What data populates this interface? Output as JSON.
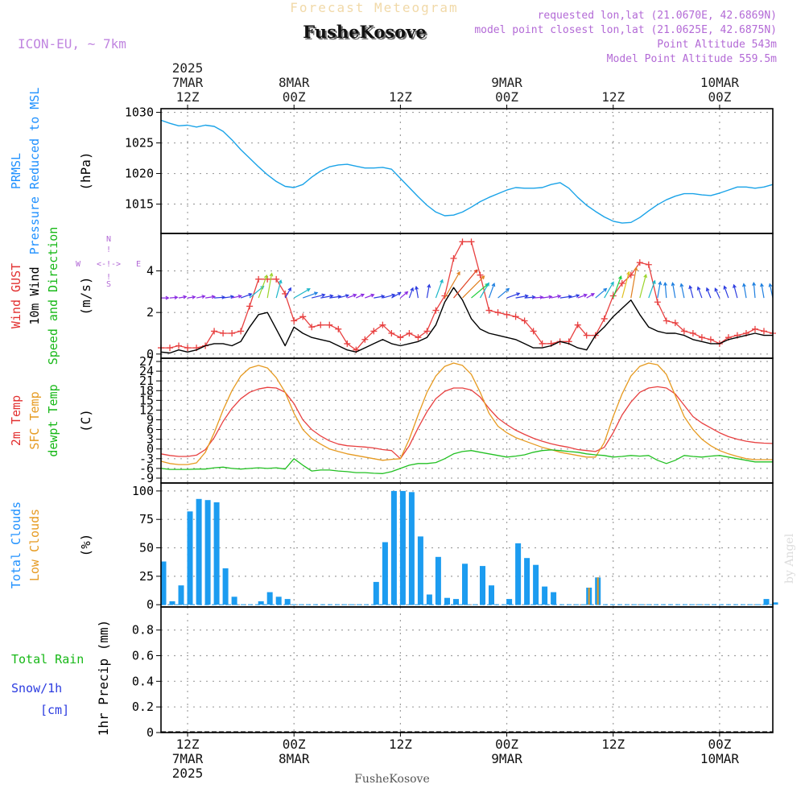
{
  "header": {
    "title": "Forecast Meteogram",
    "location": "FusheKosove",
    "model": "ICON-EU, ~ 7km",
    "requested": "requested lon,lat (21.0670E, 42.6869N)",
    "model_point": "model point closest lon,lat (21.0625E, 42.6875N)",
    "point_altitude": "Point Altitude 543m",
    "model_altitude": "Model Point Altitude 559.5m",
    "watermark": "by Angel",
    "footer_location": "FusheKosove"
  },
  "time_axis": {
    "hours_total": 69,
    "grid_hours": [
      3,
      15,
      27,
      39,
      51,
      63
    ],
    "top_labels": [
      {
        "hour": 3,
        "lines": [
          "2025",
          "7MAR",
          "12Z"
        ]
      },
      {
        "hour": 15,
        "lines": [
          "8MAR",
          "00Z"
        ]
      },
      {
        "hour": 27,
        "lines": [
          "12Z"
        ]
      },
      {
        "hour": 39,
        "lines": [
          "9MAR",
          "00Z"
        ]
      },
      {
        "hour": 51,
        "lines": [
          "12Z"
        ]
      },
      {
        "hour": 63,
        "lines": [
          "10MAR",
          "00Z"
        ]
      }
    ],
    "bottom_labels": [
      {
        "hour": 3,
        "lines": [
          "12Z",
          "7MAR",
          "2025"
        ]
      },
      {
        "hour": 15,
        "lines": [
          "00Z",
          "8MAR"
        ]
      },
      {
        "hour": 27,
        "lines": [
          "12Z"
        ]
      },
      {
        "hour": 39,
        "lines": [
          "00Z",
          "9MAR"
        ]
      },
      {
        "hour": 51,
        "lines": [
          "12Z"
        ]
      },
      {
        "hour": 63,
        "lines": [
          "00Z",
          "10MAR"
        ]
      }
    ]
  },
  "chart_data": [
    {
      "type": "line",
      "title": "PRMSL Pressure Reduced to MSL",
      "label_lines": [
        {
          "text": "PRMSL",
          "color": "#1e90ff"
        },
        {
          "text": "Pressure Reduced to MSL",
          "color": "#1e90ff"
        }
      ],
      "ylabel": "(hPa)",
      "ylim": [
        1010.2,
        1030.6
      ],
      "yticks": [
        1015,
        1020,
        1025,
        1030
      ],
      "color": "#1aa3e8",
      "x": [
        0,
        1,
        2,
        3,
        4,
        5,
        6,
        7,
        8,
        9,
        10,
        11,
        12,
        13,
        14,
        15,
        16,
        17,
        18,
        19,
        20,
        21,
        22,
        23,
        24,
        25,
        26,
        27,
        28,
        29,
        30,
        31,
        32,
        33,
        34,
        35,
        36,
        37,
        38,
        39,
        40,
        41,
        42,
        43,
        44,
        45,
        46,
        47,
        48,
        49,
        50,
        51,
        52,
        53,
        54,
        55,
        56,
        57,
        58,
        59,
        60,
        61,
        62,
        63,
        64,
        65,
        66,
        67,
        68,
        69
      ],
      "values": [
        1028.7,
        1028.2,
        1027.8,
        1027.9,
        1027.6,
        1027.9,
        1027.7,
        1026.9,
        1025.5,
        1023.9,
        1022.5,
        1021.1,
        1019.8,
        1018.7,
        1017.9,
        1017.7,
        1018.2,
        1019.4,
        1020.4,
        1021.1,
        1021.4,
        1021.5,
        1021.2,
        1020.9,
        1020.9,
        1021.0,
        1020.7,
        1019.2,
        1017.7,
        1016.2,
        1014.8,
        1013.7,
        1013.1,
        1013.2,
        1013.7,
        1014.5,
        1015.4,
        1016.1,
        1016.7,
        1017.3,
        1017.7,
        1017.6,
        1017.6,
        1017.7,
        1018.2,
        1018.5,
        1017.6,
        1016.1,
        1014.8,
        1013.8,
        1012.9,
        1012.2,
        1011.9,
        1012.0,
        1012.8,
        1013.9,
        1014.9,
        1015.7,
        1016.3,
        1016.7,
        1016.7,
        1016.5,
        1016.4,
        1016.8,
        1017.3,
        1017.8,
        1017.8,
        1017.6,
        1017.8,
        1018.2
      ]
    },
    {
      "type": "line",
      "title": "Wind GUST / 10m Wind Speed and Direction",
      "label_lines": [
        {
          "text": "Wind GUST",
          "color": "#e23030"
        },
        {
          "text": "10m Wind",
          "color": "#000000"
        },
        {
          "text": "Speed and Direction",
          "color": "#17b817"
        }
      ],
      "ylabel": "(m/s)",
      "ylim": [
        -0.2,
        5.8
      ],
      "yticks": [
        0,
        2,
        4
      ],
      "compass": {
        "n": "N",
        "s": "S",
        "w": "W",
        "e": "E",
        "arrow": "<-!->"
      },
      "series": [
        {
          "name": "Wind GUST",
          "color": "#e84040",
          "values": [
            0.3,
            0.3,
            0.4,
            0.3,
            0.3,
            0.4,
            1.1,
            1.0,
            1.0,
            1.1,
            2.3,
            3.6,
            3.6,
            3.6,
            2.9,
            1.6,
            1.8,
            1.3,
            1.4,
            1.4,
            1.2,
            0.5,
            0.2,
            0.7,
            1.1,
            1.4,
            1.0,
            0.8,
            1.0,
            0.8,
            1.1,
            2.1,
            2.8,
            4.6,
            5.4,
            5.4,
            3.8,
            2.1,
            2.0,
            1.9,
            1.8,
            1.6,
            1.1,
            0.5,
            0.5,
            0.6,
            0.6,
            1.4,
            0.9,
            0.9,
            1.7,
            2.8,
            3.4,
            3.8,
            4.4,
            4.3,
            2.5,
            1.6,
            1.5,
            1.1,
            1.0,
            0.8,
            0.7,
            0.5,
            0.8,
            0.9,
            1.0,
            1.2,
            1.1,
            1.0
          ]
        },
        {
          "name": "10m Wind",
          "color": "#000000",
          "values": [
            0.1,
            0.05,
            0.2,
            0.1,
            0.2,
            0.4,
            0.5,
            0.5,
            0.4,
            0.6,
            1.3,
            1.9,
            2.0,
            1.2,
            0.4,
            1.3,
            1.0,
            0.8,
            0.7,
            0.6,
            0.4,
            0.2,
            0.1,
            0.3,
            0.5,
            0.7,
            0.5,
            0.4,
            0.5,
            0.6,
            0.8,
            1.4,
            2.5,
            3.2,
            2.6,
            1.7,
            1.2,
            1.0,
            0.9,
            0.8,
            0.7,
            0.5,
            0.3,
            0.3,
            0.4,
            0.6,
            0.5,
            0.3,
            0.2,
            0.9,
            1.3,
            1.8,
            2.2,
            2.6,
            1.9,
            1.3,
            1.1,
            1.0,
            1.0,
            0.9,
            0.7,
            0.6,
            0.5,
            0.5,
            0.7,
            0.8,
            0.9,
            1.0,
            0.9,
            0.9
          ]
        }
      ],
      "arrows": {
        "y": 2.7,
        "dirs": [
          270,
          265,
          260,
          262,
          258,
          262,
          266,
          262,
          258,
          250,
          230,
          200,
          190,
          195,
          210,
          240,
          250,
          256,
          260,
          262,
          255,
          250,
          245,
          250,
          260,
          255,
          240,
          230,
          200,
          170,
          190,
          200,
          210,
          220,
          225,
          230,
          210,
          200,
          230,
          250,
          260,
          265,
          265,
          262,
          258,
          262,
          255,
          250,
          240,
          230,
          210,
          200,
          195,
          190,
          195,
          200,
          190,
          175,
          170,
          168,
          165,
          160,
          158,
          155,
          160,
          165,
          170,
          175,
          170,
          168
        ],
        "speeds": [
          0.2,
          0.2,
          0.2,
          0.2,
          0.3,
          0.4,
          0.5,
          0.5,
          0.4,
          0.6,
          1.3,
          1.9,
          2.0,
          1.3,
          0.6,
          1.3,
          1.0,
          0.8,
          0.7,
          0.6,
          0.5,
          0.4,
          0.3,
          0.4,
          0.5,
          0.7,
          0.5,
          0.4,
          0.5,
          0.6,
          0.8,
          1.4,
          2.5,
          3.2,
          2.6,
          1.7,
          1.2,
          1.0,
          0.9,
          0.8,
          0.7,
          0.5,
          0.4,
          0.4,
          0.4,
          0.6,
          0.5,
          0.4,
          0.3,
          0.9,
          1.3,
          1.8,
          2.2,
          2.6,
          1.9,
          1.3,
          1.1,
          1.0,
          1.0,
          0.9,
          0.7,
          0.6,
          0.5,
          0.5,
          0.7,
          0.8,
          0.9,
          1.0,
          0.9,
          0.9
        ],
        "palette": [
          "#6a1fbf",
          "#8a2be2",
          "#2b3be0",
          "#1e7fe0",
          "#1ab6c8",
          "#1ecf3a",
          "#9bd42a",
          "#e0c020",
          "#e08020",
          "#e04020"
        ]
      }
    },
    {
      "type": "line",
      "title": "2m Temp / SFC Temp / dewpt Temp",
      "label_lines": [
        {
          "text": "2m Temp",
          "color": "#e23030"
        },
        {
          "text": "SFC Temp",
          "color": "#e69a20"
        },
        {
          "text": "dewpt Temp",
          "color": "#17b817"
        }
      ],
      "ylabel": "(C)",
      "ylim": [
        -10.5,
        28
      ],
      "yticks": [
        -9,
        -6,
        -3,
        0,
        3,
        6,
        9,
        12,
        15,
        18,
        21,
        24,
        27
      ],
      "ytick_labels": [
        "-9",
        "-6",
        "-3",
        "0",
        "3",
        "6",
        "9",
        "12",
        "15",
        "18",
        "21",
        "24",
        "27"
      ],
      "series": [
        {
          "name": "2m Temp",
          "color": "#e84040",
          "values": [
            -1.5,
            -2.0,
            -2.3,
            -2.3,
            -1.9,
            -0.2,
            3.5,
            8.5,
            12.5,
            15.5,
            17.5,
            18.5,
            19.0,
            18.8,
            17.5,
            14.0,
            9.0,
            6.0,
            4.0,
            2.5,
            1.5,
            1.0,
            0.8,
            0.6,
            0.3,
            -0.2,
            -0.5,
            -3.0,
            1.0,
            6.5,
            11.5,
            15.5,
            17.8,
            18.8,
            18.8,
            18.2,
            16.0,
            12.5,
            9.5,
            7.5,
            5.8,
            4.5,
            3.3,
            2.4,
            1.6,
            1.0,
            0.5,
            -0.2,
            -0.5,
            -0.8,
            0.5,
            5.0,
            10.5,
            14.5,
            17.5,
            18.8,
            19.2,
            18.8,
            17.0,
            13.5,
            10.0,
            8.0,
            6.5,
            5.0,
            3.8,
            3.0,
            2.4,
            2.0,
            1.8,
            1.7
          ]
        },
        {
          "name": "SFC Temp",
          "color": "#e69a20",
          "values": [
            -3.8,
            -4.5,
            -4.8,
            -4.8,
            -4.3,
            -1.0,
            5.0,
            12.0,
            18.0,
            22.5,
            25.0,
            25.8,
            25.0,
            22.0,
            17.5,
            11.0,
            6.0,
            3.2,
            1.5,
            0.0,
            -0.8,
            -1.5,
            -2.0,
            -2.5,
            -3.0,
            -3.5,
            -3.2,
            -3.0,
            3.0,
            10.5,
            17.5,
            22.5,
            25.5,
            26.5,
            25.8,
            23.0,
            17.5,
            11.0,
            7.0,
            5.0,
            3.5,
            2.5,
            1.5,
            0.5,
            -0.2,
            -1.0,
            -1.5,
            -2.0,
            -2.5,
            -2.5,
            2.0,
            10.0,
            17.0,
            22.5,
            25.5,
            26.5,
            26.0,
            23.0,
            16.5,
            10.0,
            6.0,
            3.0,
            1.0,
            -0.5,
            -1.5,
            -2.3,
            -3.0,
            -3.3,
            -3.3,
            -3.3
          ]
        },
        {
          "name": "dewpt Temp",
          "color": "#22c022",
          "values": [
            -6.0,
            -6.3,
            -6.3,
            -6.3,
            -6.2,
            -6.2,
            -5.8,
            -5.6,
            -6.0,
            -6.2,
            -6.0,
            -5.8,
            -6.0,
            -5.8,
            -6.2,
            -3.0,
            -5.0,
            -6.8,
            -6.5,
            -6.5,
            -6.8,
            -7.0,
            -7.3,
            -7.3,
            -7.5,
            -7.6,
            -7.0,
            -6.0,
            -5.0,
            -4.5,
            -4.5,
            -4.2,
            -3.0,
            -1.5,
            -0.8,
            -0.5,
            -1.0,
            -1.5,
            -2.0,
            -2.5,
            -2.2,
            -1.8,
            -1.0,
            -0.5,
            -0.3,
            -0.5,
            -0.8,
            -1.0,
            -1.5,
            -1.8,
            -2.0,
            -2.5,
            -2.3,
            -2.0,
            -2.2,
            -2.0,
            -3.5,
            -4.5,
            -3.5,
            -2.0,
            -2.3,
            -2.5,
            -2.2,
            -2.0,
            -2.5,
            -3.0,
            -3.5,
            -4.0,
            -4.0,
            -4.0
          ]
        }
      ]
    },
    {
      "type": "bar",
      "title": "Total Clouds / Low Clouds",
      "label_lines": [
        {
          "text": "Total Clouds",
          "color": "#1e90ff"
        },
        {
          "text": "Low Clouds",
          "color": "#e69a20"
        }
      ],
      "ylabel": "(%)",
      "ylim": [
        -2,
        107
      ],
      "yticks": [
        0,
        25,
        50,
        75,
        100
      ],
      "series": [
        {
          "name": "Total Clouds",
          "color": "#1c9cf0",
          "values": [
            38,
            3,
            17,
            82,
            93,
            92,
            90,
            32,
            7,
            0,
            0,
            3,
            11,
            7,
            5,
            0,
            0,
            0,
            0,
            0,
            0,
            0,
            0,
            0,
            20,
            55,
            100,
            100,
            99,
            60,
            9,
            42,
            6,
            5,
            36,
            0,
            34,
            17,
            0,
            5,
            54,
            41,
            35,
            16,
            11,
            0,
            0,
            0,
            15,
            24,
            0,
            0,
            0,
            0,
            0,
            0,
            0,
            0,
            0,
            0,
            0,
            0,
            0,
            0,
            0,
            0,
            0,
            0,
            5,
            2
          ]
        },
        {
          "name": "Low Clouds",
          "color": "#e69a20",
          "values": [
            0,
            0,
            0,
            0,
            0,
            0,
            0,
            0,
            0,
            0,
            0,
            0,
            0,
            0,
            0,
            0,
            0,
            0,
            0,
            0,
            0,
            0,
            0,
            0,
            0,
            0,
            0,
            0,
            0,
            0,
            0,
            0,
            0,
            0,
            0,
            0,
            0,
            0,
            0,
            0,
            0,
            0,
            0,
            0,
            0,
            0,
            0,
            0,
            15,
            24,
            0,
            0,
            0,
            0,
            0,
            0,
            0,
            0,
            0,
            0,
            0,
            0,
            0,
            0,
            0,
            0,
            0,
            0,
            0,
            0
          ]
        }
      ]
    },
    {
      "type": "bar",
      "title": "1hr Precip",
      "label_lines": [
        {
          "text": "Total  Rain",
          "color": "#17b817"
        },
        {
          "text": "Snow/1h",
          "color": "#2b3be0"
        },
        {
          "text": "[cm]",
          "color": "#2b3be0"
        }
      ],
      "ylabel": "1hr Precip (mm)",
      "ylim": [
        0,
        0.98
      ],
      "yticks": [
        0,
        0.2,
        0.4,
        0.6,
        0.8
      ],
      "ytick_labels": [
        "0",
        "0.2",
        "0.4",
        "0.6",
        "0.8"
      ],
      "series": [
        {
          "name": "Total Rain",
          "color": "#17b817",
          "values": []
        },
        {
          "name": "Snow/1h",
          "color": "#2b3be0",
          "values": []
        }
      ]
    }
  ]
}
